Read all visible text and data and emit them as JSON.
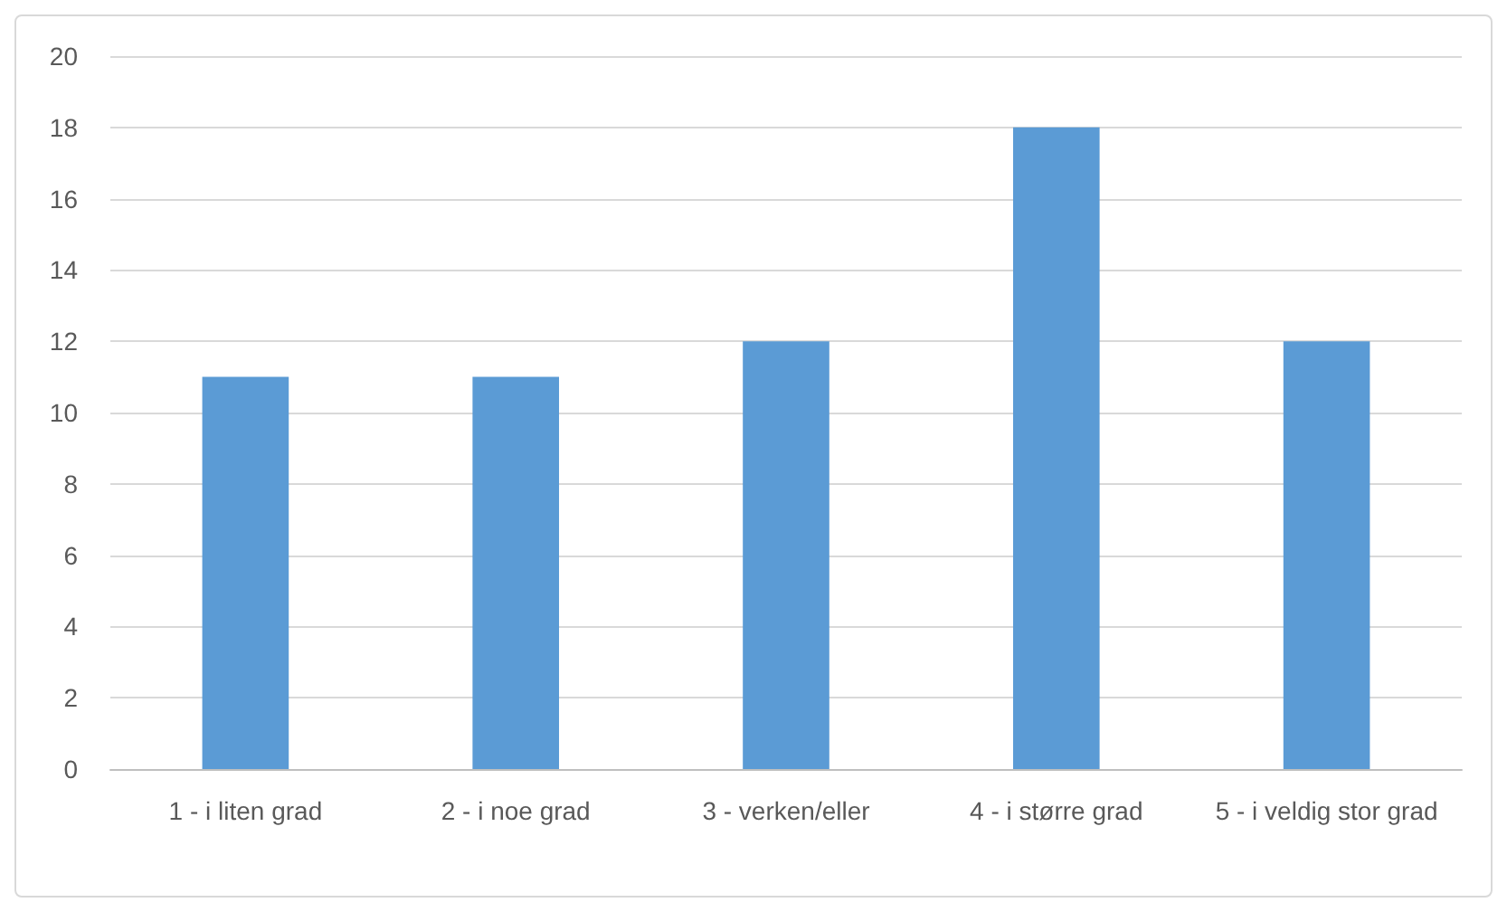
{
  "chart_data": {
    "type": "bar",
    "categories": [
      "1 - i liten grad",
      "2 - i noe grad",
      "3 - verken/eller",
      "4 - i større grad",
      "5 - i veldig stor grad"
    ],
    "values": [
      11,
      11,
      12,
      18,
      12
    ],
    "color": "#5b9bd5",
    "ylim": [
      0,
      20
    ],
    "yticks": [
      0,
      2,
      4,
      6,
      8,
      10,
      12,
      14,
      16,
      18,
      20
    ],
    "grid": "y"
  }
}
